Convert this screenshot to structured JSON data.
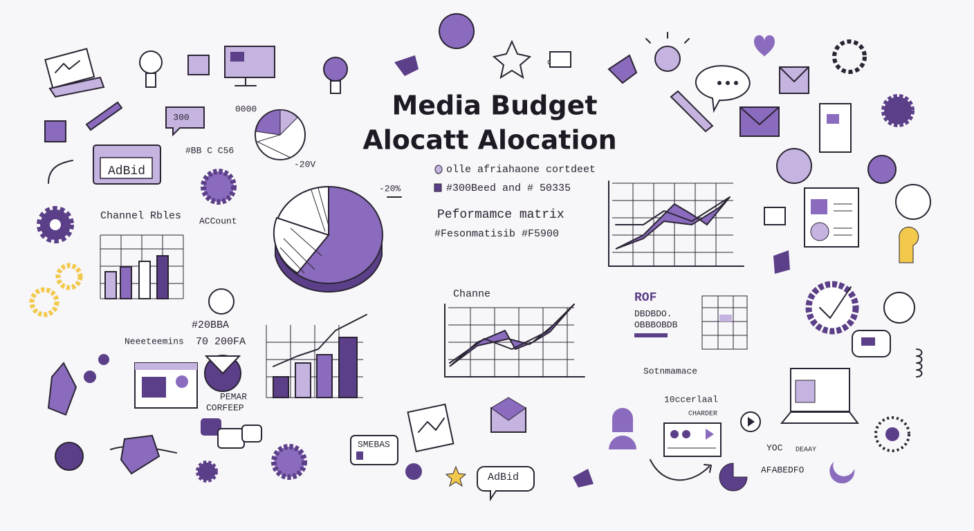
{
  "header": {
    "title": [
      "Media Budget",
      "Alocatt Alocation"
    ]
  },
  "notes": [
    "olle afriahaone cortdeet",
    "#300Beed and # 50335",
    "Peformamce matrix",
    "#Fesonmatisib #F5900"
  ],
  "labels": [
    "AdBid",
    "300",
    "0000",
    "#BB C C56",
    "Channel Rbles",
    "ACCount",
    "-20V",
    "-20%",
    "Channe",
    "#20BBA",
    "Neeeteemins",
    "70 200FA",
    "PEMAR",
    "CORFEEP",
    "SMEBAS",
    "AdBid",
    "ROF",
    "DBDBDO.",
    "OBBBOBDB",
    "Sotnmamace",
    "10ccerlaal",
    "CHARDER",
    "YOC",
    "DEAAY",
    "AFABEDFO"
  ]
}
